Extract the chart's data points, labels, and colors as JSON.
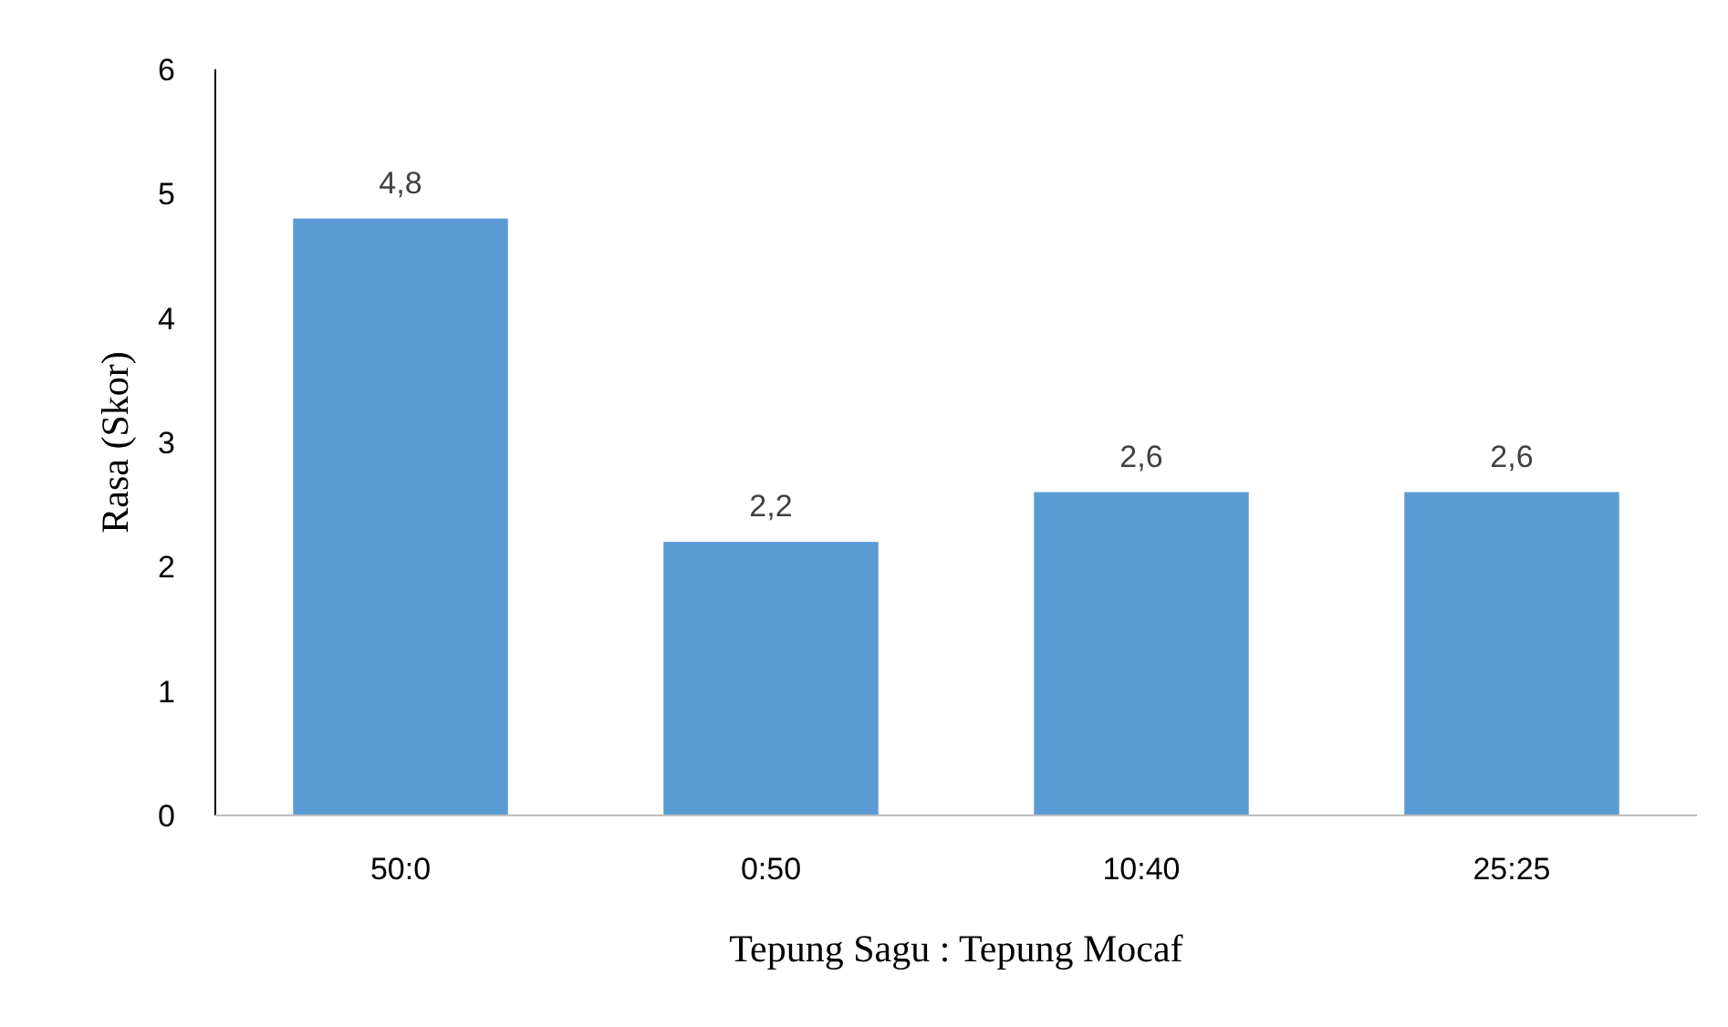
{
  "chart_data": {
    "type": "bar",
    "xlabel": "Tepung Sagu : Tepung Mocaf",
    "ylabel": "Rasa (Skor)",
    "categories": [
      "50:0",
      "0:50",
      "10:40",
      "25:25"
    ],
    "values": [
      4.8,
      2.2,
      2.6,
      2.6
    ],
    "color": "#5b9bd5",
    "value_labels": [
      "4,8",
      "2,2",
      "2,6",
      "2,6"
    ],
    "ylim": [
      0,
      6
    ],
    "yticks": [
      0,
      1,
      2,
      3,
      4,
      5,
      6
    ],
    "grid": false
  }
}
